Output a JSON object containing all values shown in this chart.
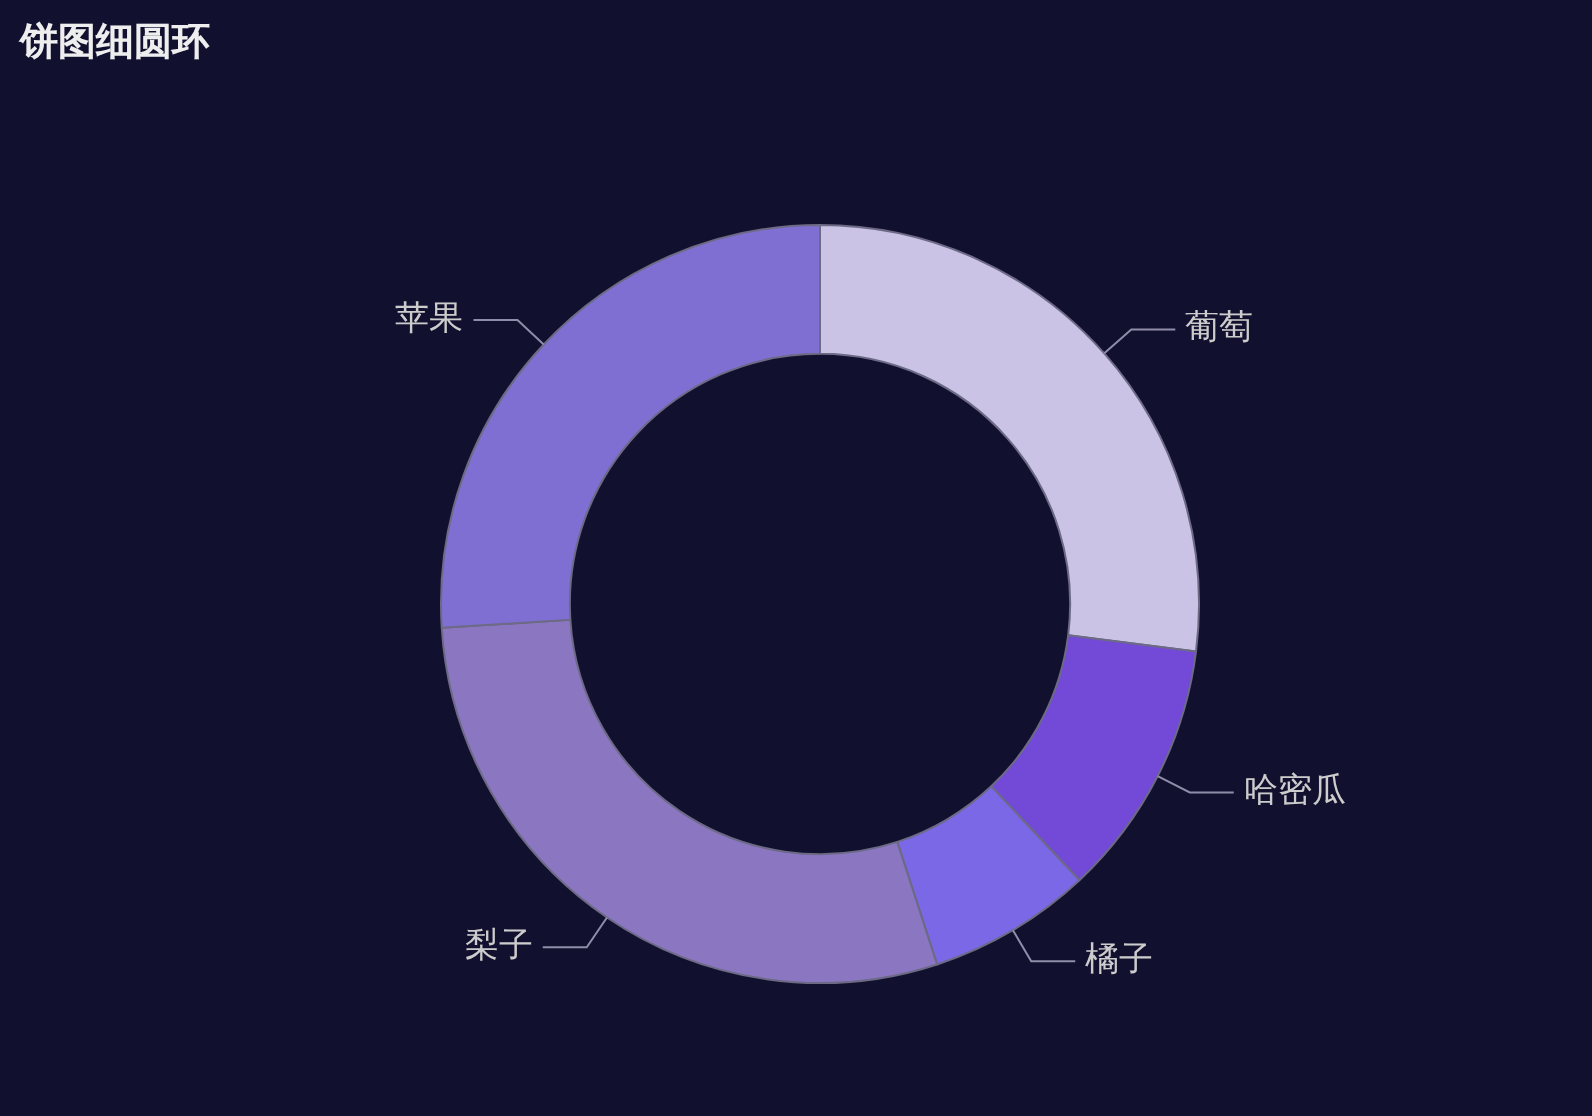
{
  "chart_data": {
    "type": "donut",
    "title": "饼图细圆环",
    "categories": [
      "葡萄",
      "哈密瓜",
      "橘子",
      "梨子",
      "苹果"
    ],
    "values": [
      27,
      11,
      7,
      29,
      26
    ],
    "colors": [
      "#cbc3e6",
      "#7349d8",
      "#7b68e6",
      "#8b76c2",
      "#7f6fd2"
    ],
    "legend": false
  }
}
